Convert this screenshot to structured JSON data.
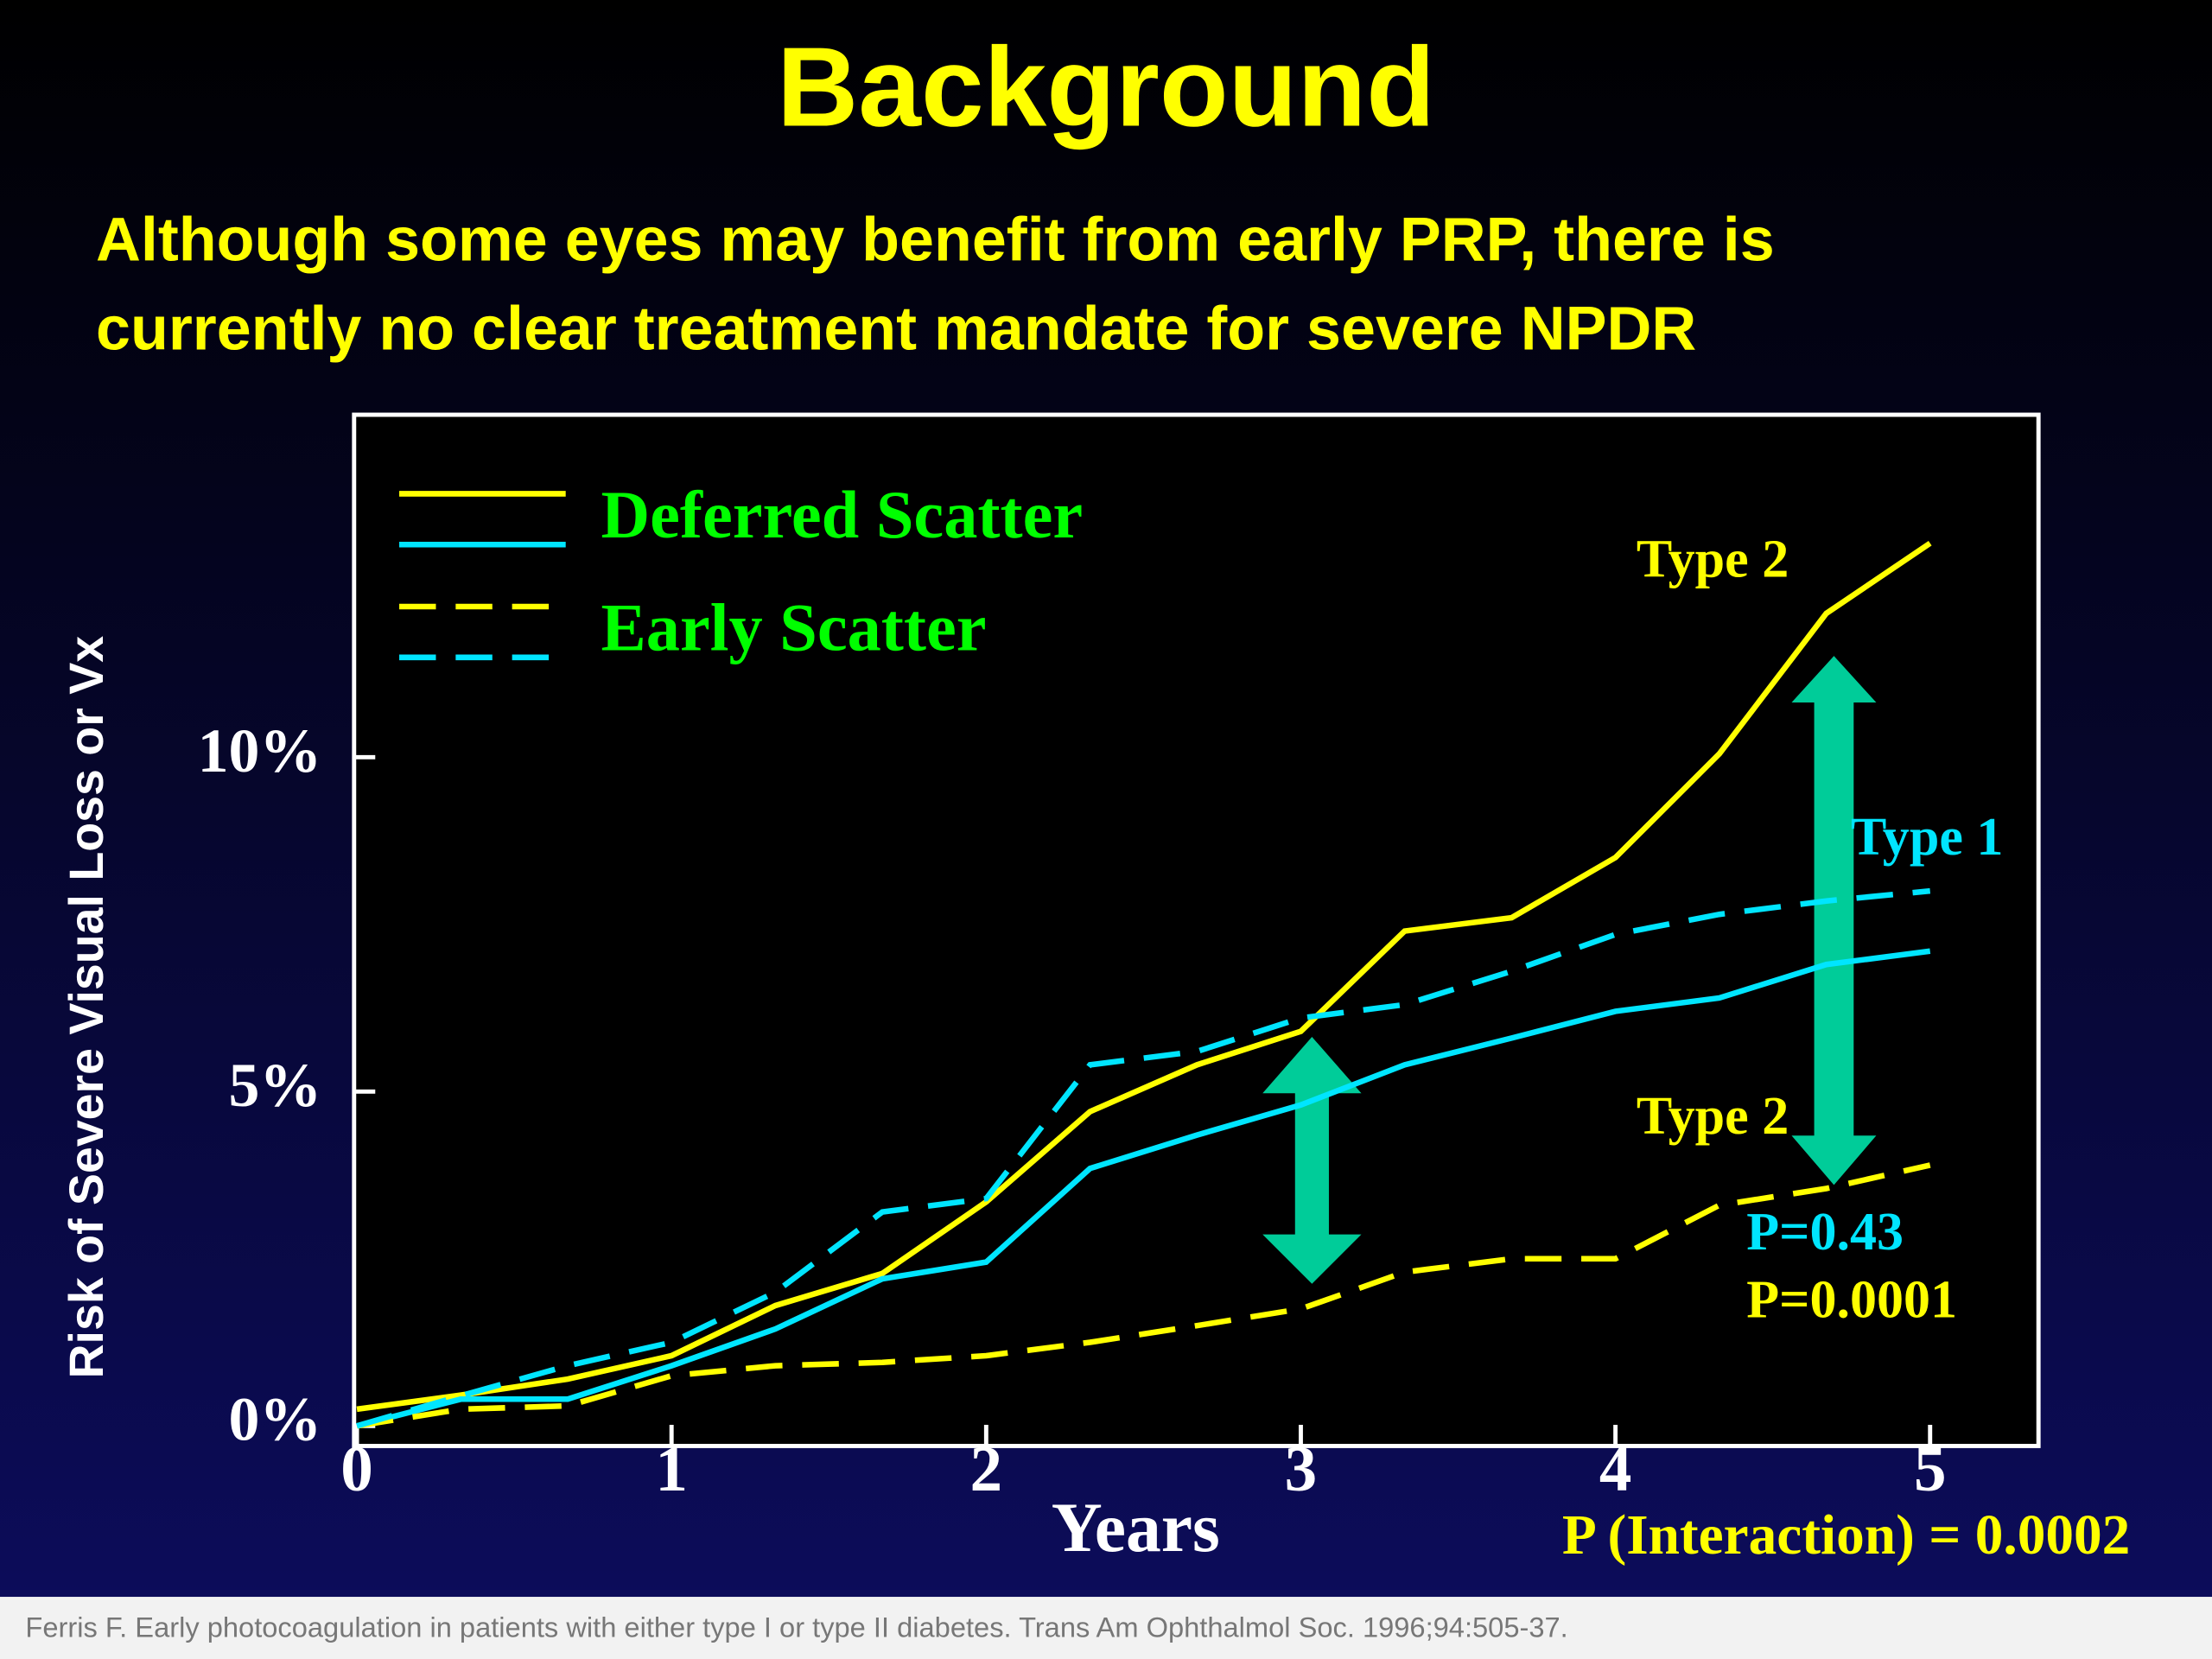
{
  "chart_data": {
    "type": "line",
    "title": "Background",
    "subtitle": [
      "Although some eyes may benefit from early PRP, there is",
      "currently no clear treatment mandate for severe NPDR"
    ],
    "x_label": "Years",
    "y_label": "Risk of Severe Visual Loss or Vx",
    "x": [
      0,
      0.33,
      0.67,
      1,
      1.33,
      1.67,
      2,
      2.33,
      2.67,
      3,
      3.33,
      3.67,
      4,
      4.33,
      4.67,
      5
    ],
    "xlim": [
      0,
      5.34
    ],
    "xticks": [
      0,
      1,
      2,
      3,
      4,
      5
    ],
    "ylim": [
      -0.3,
      15.1
    ],
    "yticks": [
      {
        "value": 0,
        "label": "0%"
      },
      {
        "value": 5,
        "label": "5%"
      },
      {
        "value": 10,
        "label": "10%"
      }
    ],
    "legend": [
      "Deferred Scatter",
      "Early Scatter"
    ],
    "series": [
      {
        "color": "#ffff00",
        "dashed": false,
        "values": [
          0.25,
          0.46,
          0.7,
          1.05,
          1.8,
          2.28,
          3.35,
          4.7,
          5.4,
          5.9,
          7.4,
          7.6,
          8.5,
          10.05,
          12.15,
          13.2
        ]
      },
      {
        "color": "#00e5ff",
        "dashed": false,
        "values": [
          0,
          0.4,
          0.4,
          0.9,
          1.45,
          2.2,
          2.45,
          3.85,
          4.35,
          4.8,
          5.4,
          5.8,
          6.2,
          6.4,
          6.9,
          7.1
        ]
      },
      {
        "color": "#ffff00",
        "dashed": true,
        "values": [
          0,
          0.25,
          0.3,
          0.75,
          0.9,
          0.95,
          1.05,
          1.25,
          1.5,
          1.75,
          2.3,
          2.5,
          2.5,
          3.3,
          3.55,
          3.9
        ]
      },
      {
        "color": "#00e5ff",
        "dashed": true,
        "values": [
          0,
          0.45,
          0.9,
          1.25,
          2.0,
          3.2,
          3.4,
          5.4,
          5.6,
          6.1,
          6.3,
          6.8,
          7.35,
          7.65,
          7.85,
          8.0
        ]
      }
    ],
    "annotations": [
      {
        "text": "Type 2",
        "color": "#ffff00"
      },
      {
        "text": "Type 1",
        "color": "#00e5ff"
      },
      {
        "text": "Type 2",
        "color": "#ffff00"
      },
      {
        "text": "P=0.43",
        "color": "#00e5ff"
      },
      {
        "text": "P=0.0001",
        "color": "#ffff00"
      },
      {
        "text": "P (Interaction) = 0.0002",
        "color": "#ffff00"
      }
    ],
    "source": "Ferris F. Early photocoagulation in patients with either type I or type II diabetes. Trans Am Ophthalmol Soc. 1996;94:505-37."
  }
}
